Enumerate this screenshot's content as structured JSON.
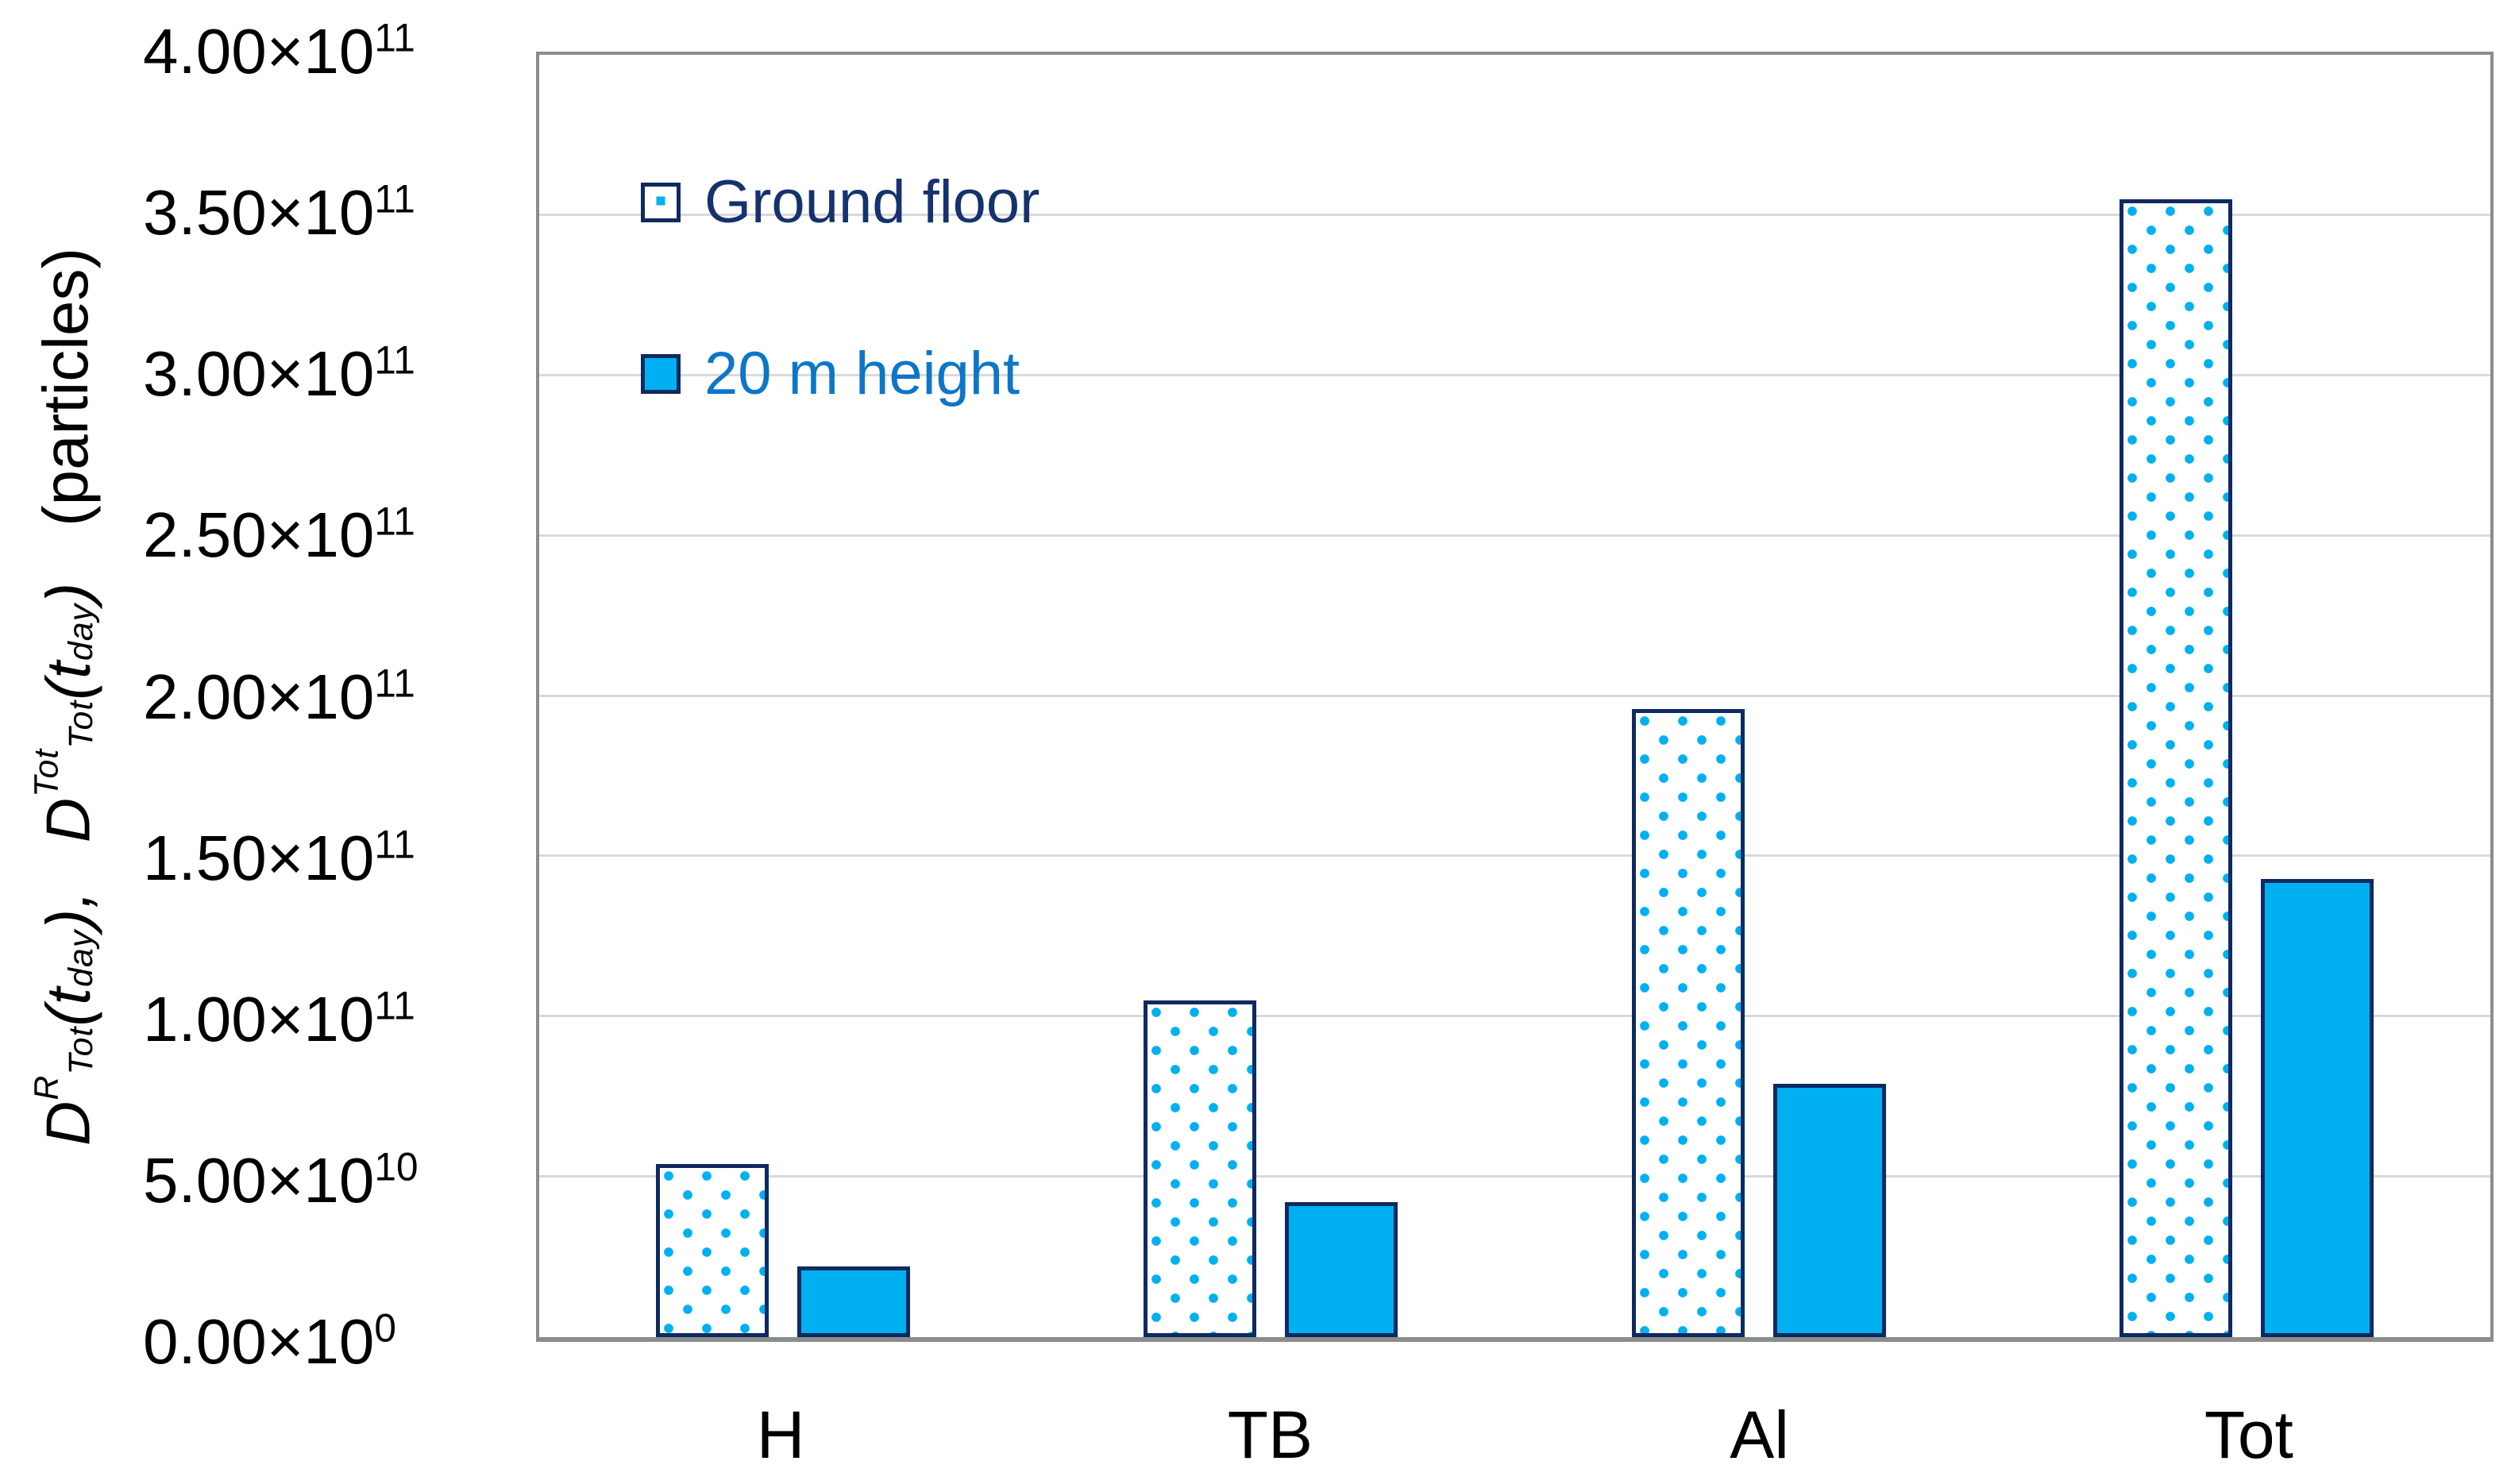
{
  "y_axis": {
    "formula": {
      "d1": "D",
      "d1_sup": "R",
      "d1_sub": "Tot",
      "t1_open": "(t",
      "t1_sub": "day",
      "t1_close": "),",
      "d2": "D",
      "d2_sup": "Tot",
      "d2_sub": "Tot",
      "t2_open": "(t",
      "t2_sub": "day",
      "t2_close": ")",
      "units": "(particles)"
    },
    "ticks": [
      {
        "mantissa": "4.00×10",
        "exp": "11"
      },
      {
        "mantissa": "3.50×10",
        "exp": "11"
      },
      {
        "mantissa": "3.00×10",
        "exp": "11"
      },
      {
        "mantissa": "2.50×10",
        "exp": "11"
      },
      {
        "mantissa": "2.00×10",
        "exp": "11"
      },
      {
        "mantissa": "1.50×10",
        "exp": "11"
      },
      {
        "mantissa": "1.00×10",
        "exp": "11"
      },
      {
        "mantissa": "5.00×10",
        "exp": "10"
      },
      {
        "mantissa": "0.00×10",
        "exp": "0"
      }
    ]
  },
  "legend": {
    "items": [
      {
        "label": "Ground floor",
        "swatch": "dotted"
      },
      {
        "label": "20 m height",
        "swatch": "solid"
      }
    ]
  },
  "chart_data": {
    "type": "bar",
    "categories": [
      "H",
      "TB",
      "Al",
      "Tot"
    ],
    "series": [
      {
        "name": "Ground floor",
        "style": "dotted",
        "values": [
          54000000000,
          105000000000,
          196000000000,
          355000000000
        ]
      },
      {
        "name": "20 m height",
        "style": "solid",
        "values": [
          22000000000,
          42000000000,
          79000000000,
          143000000000
        ]
      }
    ],
    "title": "",
    "xlabel": "",
    "ylabel": "D^R_Tot(t_day), D^Tot_Tot(t_day) (particles)",
    "ylim": [
      0,
      400000000000
    ],
    "ytick_step": 50000000000,
    "grid": true,
    "legend_position": "inside-top-left"
  },
  "colors": {
    "bar_fill_blue": "#00b0f0",
    "bar_border_navy": "#0e2a60",
    "legend_ground_text": "#16326e",
    "legend_20m_text": "#0d76c8",
    "gridline": "#d9d9d9",
    "axis_line": "#8c8c8c",
    "tick_text": "#000000"
  }
}
